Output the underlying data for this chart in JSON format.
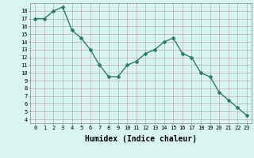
{
  "x": [
    0,
    1,
    2,
    3,
    4,
    5,
    6,
    7,
    8,
    9,
    10,
    11,
    12,
    13,
    14,
    15,
    16,
    17,
    18,
    19,
    20,
    21,
    22,
    23
  ],
  "y": [
    17,
    17,
    18,
    18.5,
    15.5,
    14.5,
    13,
    11,
    9.5,
    9.5,
    11,
    11.5,
    12.5,
    13,
    14,
    14.5,
    12.5,
    12,
    10,
    9.5,
    7.5,
    6.5,
    5.5,
    4.5
  ],
  "line_color": "#2d7d6e",
  "marker": "D",
  "marker_size": 2,
  "bg_color": "#d8f5f0",
  "grid_color": "#c0a8b8",
  "xlabel": "Humidex (Indice chaleur)",
  "ylabel": "",
  "title": "",
  "xlim": [
    -0.5,
    23.5
  ],
  "ylim": [
    3.5,
    19.0
  ],
  "yticks": [
    4,
    5,
    6,
    7,
    8,
    9,
    10,
    11,
    12,
    13,
    14,
    15,
    16,
    17,
    18
  ],
  "xticks": [
    0,
    1,
    2,
    3,
    4,
    5,
    6,
    7,
    8,
    9,
    10,
    11,
    12,
    13,
    14,
    15,
    16,
    17,
    18,
    19,
    20,
    21,
    22,
    23
  ],
  "xtick_labels": [
    "0",
    "1",
    "2",
    "3",
    "4",
    "5",
    "6",
    "7",
    "8",
    "9",
    "10",
    "11",
    "12",
    "13",
    "14",
    "15",
    "16",
    "17",
    "18",
    "19",
    "20",
    "21",
    "22",
    "23"
  ],
  "tick_fontsize": 5,
  "xlabel_fontsize": 7,
  "linewidth": 1.0
}
